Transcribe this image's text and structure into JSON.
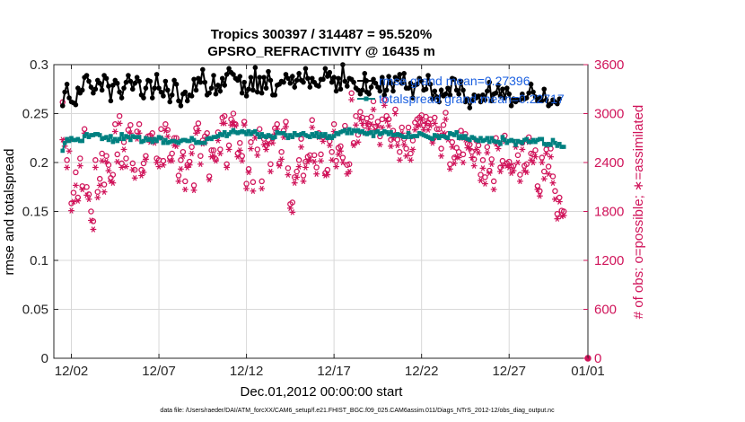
{
  "chart_data": {
    "type": "line",
    "title_line1": "Tropics 300397 / 314487 = 95.520%",
    "title_line2": "GPSRO_REFRACTIVITY @ 16435 m",
    "xlabel": "Dec.01,2012 00:00:00 start",
    "ylabel_left": "rmse and totalspread",
    "ylabel_right": "# of obs: o=possible; ∗=assimilated",
    "footer": "data file: /Users/raeder/DAI/ATM_forcXX/CAM6_setup/f.e21.FHIST_BGC.f09_025.CAM6assim.011/Diags_NTrS_2012-12/obs_diag_output.nc",
    "legend": [
      {
        "label": "rmse grand mean=0.27396",
        "color": "#000000"
      },
      {
        "label": "totalspread grand mean=0.22717",
        "color": "#008080"
      }
    ],
    "xlim": [
      0.5,
      31.0
    ],
    "ylim_left": [
      0,
      0.3
    ],
    "ylim_right": [
      0,
      3600
    ],
    "x_ticks": [
      {
        "value": 1.5,
        "label": "12/02"
      },
      {
        "value": 6.5,
        "label": "12/07"
      },
      {
        "value": 11.5,
        "label": "12/12"
      },
      {
        "value": 16.5,
        "label": "12/17"
      },
      {
        "value": 21.5,
        "label": "12/22"
      },
      {
        "value": 26.5,
        "label": "12/27"
      },
      {
        "value": 31.0,
        "label": "01/01"
      }
    ],
    "y_ticks_left": [
      {
        "value": 0,
        "label": "0"
      },
      {
        "value": 0.05,
        "label": "0.05"
      },
      {
        "value": 0.1,
        "label": "0.1"
      },
      {
        "value": 0.15,
        "label": "0.15"
      },
      {
        "value": 0.2,
        "label": "0.2"
      },
      {
        "value": 0.25,
        "label": "0.25"
      },
      {
        "value": 0.3,
        "label": "0.3"
      }
    ],
    "y_ticks_right": [
      {
        "value": 0,
        "label": "0"
      },
      {
        "value": 600,
        "label": "600"
      },
      {
        "value": 1200,
        "label": "1200"
      },
      {
        "value": 1800,
        "label": "1800"
      },
      {
        "value": 2400,
        "label": "2400"
      },
      {
        "value": 3000,
        "label": "3000"
      },
      {
        "value": 3600,
        "label": "3600"
      }
    ],
    "series_colors": {
      "rmse": "#000000",
      "totalspread": "#008080",
      "obs": "#d0145a",
      "grid": "#d8d8d8"
    },
    "time_start": 1.0,
    "time_step": 0.125,
    "rmse": [
      0.258,
      0.272,
      0.28,
      0.266,
      0.262,
      0.261,
      0.259,
      0.276,
      0.271,
      0.274,
      0.287,
      0.289,
      0.283,
      0.277,
      0.271,
      0.275,
      0.284,
      0.281,
      0.274,
      0.289,
      0.286,
      0.278,
      0.263,
      0.279,
      0.284,
      0.281,
      0.272,
      0.266,
      0.276,
      0.282,
      0.289,
      0.283,
      0.275,
      0.281,
      0.287,
      0.283,
      0.269,
      0.266,
      0.276,
      0.284,
      0.283,
      0.266,
      0.276,
      0.29,
      0.276,
      0.272,
      0.268,
      0.283,
      0.274,
      0.262,
      0.269,
      0.284,
      0.28,
      0.263,
      0.258,
      0.27,
      0.272,
      0.263,
      0.269,
      0.268,
      0.285,
      0.274,
      0.286,
      0.282,
      0.295,
      0.282,
      0.269,
      0.271,
      0.276,
      0.289,
      0.27,
      0.279,
      0.273,
      0.286,
      0.279,
      0.29,
      0.296,
      0.292,
      0.29,
      0.286,
      0.284,
      0.288,
      0.271,
      0.282,
      0.268,
      0.275,
      0.287,
      0.274,
      0.297,
      0.272,
      0.287,
      0.271,
      0.287,
      0.276,
      0.293,
      0.284,
      0.269,
      0.269,
      0.279,
      0.28,
      0.283,
      0.282,
      0.29,
      0.286,
      0.281,
      0.288,
      0.277,
      0.284,
      0.291,
      0.284,
      0.282,
      0.296,
      0.286,
      0.277,
      0.286,
      0.282,
      0.279,
      0.278,
      0.285,
      0.285,
      0.296,
      0.288,
      0.292,
      0.282,
      0.287,
      0.273,
      0.286,
      0.275,
      0.3,
      0.283,
      0.278,
      0.286,
      0.285,
      0.282,
      0.276,
      0.274,
      0.27,
      0.274,
      0.291,
      0.272,
      0.27,
      0.277,
      0.285,
      0.281,
      0.277,
      0.273,
      0.287,
      0.269,
      0.274,
      0.288,
      0.281,
      0.273,
      0.287,
      0.285,
      0.29,
      0.281,
      0.291,
      0.276,
      0.276,
      0.281,
      0.266,
      0.279,
      0.28,
      0.286,
      0.283,
      0.274,
      0.275,
      0.289,
      0.28,
      0.265,
      0.273,
      0.267,
      0.262,
      0.274,
      0.268,
      0.27,
      0.276,
      0.269,
      0.286,
      0.285,
      0.274,
      0.27,
      0.283,
      0.274,
      0.262,
      0.265,
      0.256,
      0.263,
      0.269,
      0.266,
      0.268,
      0.262,
      0.269,
      0.264,
      0.273,
      0.282,
      0.263,
      0.27,
      0.271,
      0.279,
      0.268,
      0.275,
      0.266,
      0.276,
      0.27,
      0.258,
      0.265,
      0.262,
      0.264,
      0.264,
      0.27,
      0.265,
      0.266,
      0.271,
      0.28,
      0.272,
      0.267,
      0.263,
      0.266,
      0.263,
      0.275,
      0.264,
      0.258,
      0.26,
      0.264,
      0.262,
      0.26,
      0.265
    ],
    "totalspread": [
      0.212,
      0.22,
      0.224,
      0.222,
      0.225,
      0.223,
      0.223,
      0.224,
      0.222,
      0.222,
      0.227,
      0.229,
      0.226,
      0.228,
      0.228,
      0.229,
      0.229,
      0.228,
      0.224,
      0.225,
      0.226,
      0.223,
      0.227,
      0.221,
      0.224,
      0.222,
      0.224,
      0.229,
      0.224,
      0.227,
      0.226,
      0.223,
      0.227,
      0.226,
      0.226,
      0.226,
      0.221,
      0.222,
      0.225,
      0.223,
      0.224,
      0.221,
      0.224,
      0.222,
      0.226,
      0.225,
      0.22,
      0.223,
      0.22,
      0.221,
      0.222,
      0.222,
      0.221,
      0.22,
      0.222,
      0.223,
      0.223,
      0.222,
      0.222,
      0.225,
      0.223,
      0.22,
      0.221,
      0.22,
      0.22,
      0.22,
      0.224,
      0.225,
      0.224,
      0.226,
      0.226,
      0.227,
      0.229,
      0.228,
      0.231,
      0.227,
      0.229,
      0.231,
      0.233,
      0.231,
      0.23,
      0.231,
      0.232,
      0.231,
      0.229,
      0.232,
      0.229,
      0.231,
      0.232,
      0.229,
      0.226,
      0.229,
      0.227,
      0.226,
      0.228,
      0.227,
      0.225,
      0.226,
      0.231,
      0.23,
      0.23,
      0.23,
      0.228,
      0.225,
      0.228,
      0.226,
      0.23,
      0.228,
      0.228,
      0.229,
      0.23,
      0.228,
      0.227,
      0.226,
      0.229,
      0.227,
      0.23,
      0.226,
      0.229,
      0.227,
      0.229,
      0.225,
      0.227,
      0.225,
      0.227,
      0.23,
      0.229,
      0.231,
      0.232,
      0.233,
      0.23,
      0.234,
      0.23,
      0.233,
      0.232,
      0.233,
      0.231,
      0.232,
      0.23,
      0.229,
      0.23,
      0.231,
      0.227,
      0.231,
      0.232,
      0.229,
      0.23,
      0.232,
      0.231,
      0.229,
      0.231,
      0.228,
      0.228,
      0.229,
      0.228,
      0.227,
      0.226,
      0.226,
      0.23,
      0.226,
      0.227,
      0.227,
      0.227,
      0.23,
      0.229,
      0.228,
      0.227,
      0.226,
      0.225,
      0.224,
      0.228,
      0.227,
      0.225,
      0.227,
      0.227,
      0.226,
      0.225,
      0.23,
      0.229,
      0.228,
      0.231,
      0.225,
      0.227,
      0.225,
      0.227,
      0.224,
      0.223,
      0.226,
      0.225,
      0.223,
      0.222,
      0.225,
      0.222,
      0.223,
      0.225,
      0.221,
      0.225,
      0.222,
      0.221,
      0.221,
      0.219,
      0.226,
      0.223,
      0.22,
      0.222,
      0.223,
      0.222,
      0.218,
      0.222,
      0.221,
      0.22,
      0.223,
      0.224,
      0.221,
      0.221,
      0.223,
      0.221,
      0.223,
      0.224,
      0.224,
      0.219,
      0.218,
      0.219,
      0.218,
      0.223,
      0.22,
      0.217,
      0.219,
      0.216,
      0.216
    ],
    "obs_possible": [
      3140,
      2660,
      2430,
      2680,
      1900,
      2030,
      2280,
      1970,
      2450,
      2110,
      2810,
      2100,
      2010,
      1800,
      1680,
      2430,
      2040,
      2200,
      2510,
      2130,
      2480,
      2370,
      2210,
      2250,
      2870,
      2500,
      2970,
      2390,
      2650,
      2450,
      2800,
      2860,
      2390,
      2310,
      2780,
      2870,
      2310,
      2390,
      2480,
      2720,
      2730,
      2760,
      2680,
      2450,
      2430,
      2810,
      2420,
      2870,
      2800,
      2460,
      2510,
      2700,
      2700,
      2240,
      2430,
      2530,
      2170,
      2370,
      2410,
      2590,
      2120,
      2820,
      2880,
      2480,
      2670,
      2720,
      2760,
      2230,
      2550,
      2550,
      2440,
      2770,
      2560,
      2950,
      2970,
      2380,
      2610,
      2930,
      3000,
      2870,
      2510,
      2640,
      2480,
      2900,
      2140,
      2320,
      2650,
      2160,
      2750,
      2560,
      2810,
      2170,
      2690,
      2610,
      2680,
      2380,
      2700,
      2820,
      2870,
      2390,
      2530,
      2790,
      2900,
      2330,
      1890,
      1910,
      2220,
      2290,
      2430,
      2690,
      2240,
      2410,
      2470,
      2490,
      2920,
      2490,
      2340,
      2760,
      2500,
      2710,
      2270,
      2310,
      2660,
      2530,
      2870,
      2420,
      2580,
      2600,
      2460,
      2850,
      2370,
      2380,
      3250,
      2640,
      2970,
      2740,
      3020,
      2950,
      2850,
      2940,
      2870,
      2960,
      3150,
      2840,
      2900,
      2720,
      2930,
      3170,
      2970,
      2930,
      2680,
      2790,
      3050,
      2680,
      2530,
      2830,
      2690,
      2570,
      2830,
      2510,
      2670,
      2890,
      2930,
      2950,
      2980,
      2860,
      2960,
      2890,
      2930,
      2680,
      2950,
      2810,
      2810,
      2570,
      2860,
      3010,
      2750,
      2380,
      2650,
      2460,
      2580,
      2530,
      2790,
      2500,
      2750,
      2630,
      2620,
      2530,
      2440,
      2670,
      2610,
      2250,
      2430,
      2220,
      2590,
      2300,
      2440,
      2170,
      2700,
      2620,
      2340,
      2420,
      2730,
      2390,
      2410,
      2350,
      2360,
      2650,
      2490,
      2250,
      2640,
      2360,
      2380,
      2710,
      2510,
      2500,
      2550,
      2110,
      2050,
      2460,
      2290,
      2560,
      2350,
      2570,
      2230,
      2050,
      1770,
      1970,
      1810,
      1800
    ],
    "obs_assimilated": [
      2680,
      2600,
      2340,
      2540,
      1810,
      1920,
      2120,
      1930,
      2360,
      2070,
      2760,
      2000,
      1950,
      1690,
      1580,
      2340,
      1970,
      2120,
      2420,
      2040,
      2410,
      2300,
      2170,
      2150,
      2780,
      2410,
      2880,
      2340,
      2560,
      2350,
      2710,
      2760,
      2310,
      2210,
      2690,
      2760,
      2240,
      2280,
      2440,
      2680,
      2650,
      2690,
      2640,
      2400,
      2350,
      2700,
      2370,
      2790,
      2720,
      2420,
      2420,
      2610,
      2600,
      2170,
      2320,
      2480,
      2070,
      2340,
      2370,
      2510,
      2060,
      2760,
      2790,
      2380,
      2630,
      2640,
      2710,
      2190,
      2470,
      2480,
      2420,
      2670,
      2510,
      2880,
      2880,
      2340,
      2560,
      2860,
      2890,
      2850,
      2470,
      2550,
      2420,
      2860,
      2080,
      2280,
      2570,
      2050,
      2700,
      2490,
      2730,
      2080,
      2620,
      2560,
      2630,
      2290,
      2640,
      2750,
      2810,
      2360,
      2440,
      2710,
      2840,
      2250,
      1840,
      1790,
      2150,
      2220,
      2350,
      2590,
      2170,
      2340,
      2410,
      2430,
      2830,
      2410,
      2260,
      2710,
      2420,
      2660,
      2240,
      2250,
      2610,
      2430,
      2780,
      2350,
      2500,
      2540,
      2400,
      2800,
      2260,
      2290,
      3170,
      2610,
      2860,
      2650,
      2930,
      2880,
      2760,
      2880,
      2810,
      2870,
      3050,
      2800,
      2850,
      2620,
      2830,
      3100,
      2910,
      2850,
      2600,
      2700,
      3000,
      2610,
      2430,
      2760,
      2620,
      2480,
      2760,
      2430,
      2560,
      2800,
      2840,
      2860,
      2920,
      2800,
      2880,
      2800,
      2850,
      2640,
      2880,
      2710,
      2730,
      2480,
      2760,
      2930,
      2680,
      2320,
      2590,
      2390,
      2470,
      2460,
      2700,
      2400,
      2680,
      2580,
      2570,
      2460,
      2360,
      2560,
      2520,
      2180,
      2330,
      2140,
      2520,
      2270,
      2380,
      2070,
      2630,
      2570,
      2290,
      2360,
      2660,
      2360,
      2340,
      2270,
      2300,
      2590,
      2400,
      2170,
      2560,
      2300,
      2280,
      2650,
      2430,
      2400,
      2470,
      2070,
      1990,
      2400,
      2200,
      2510,
      2260,
      2470,
      2150,
      1950,
      1710,
      1920,
      1740,
      1750
    ],
    "obs_end_possible": 0,
    "obs_end_assimilated": 0
  }
}
